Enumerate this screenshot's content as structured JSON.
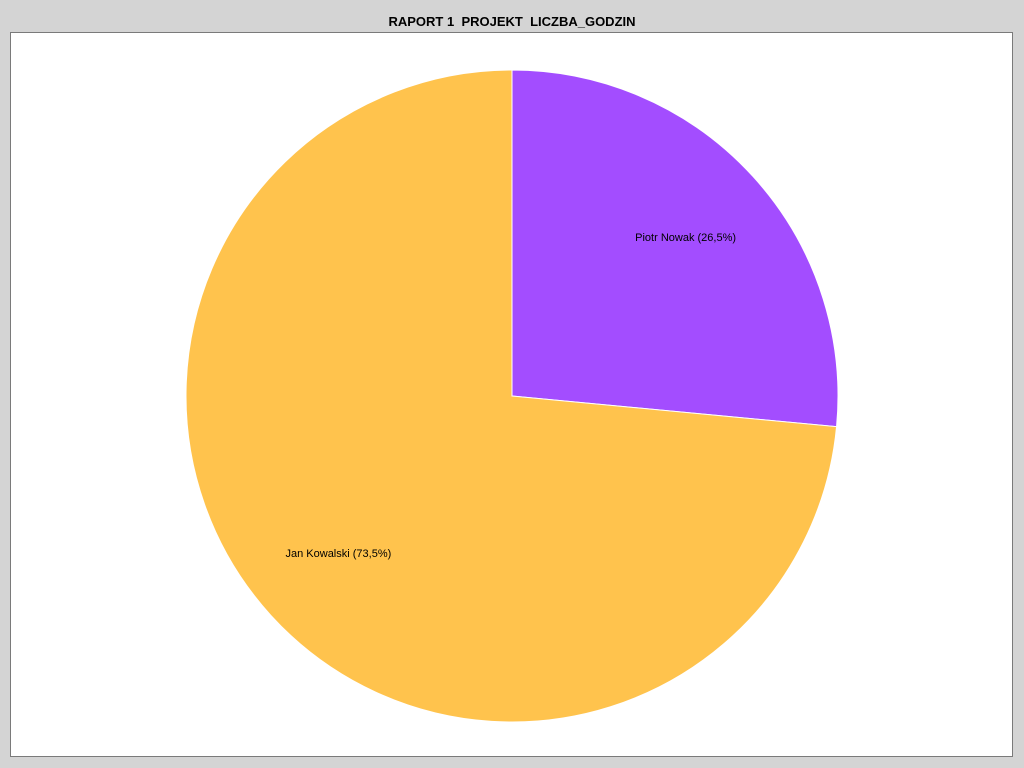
{
  "chart_data": {
    "type": "pie",
    "title": "RAPORT 1  PROJEKT  LICZBA_GODZIN",
    "slices": [
      {
        "name": "Piotr Nowak",
        "percent": 26.5,
        "label": "Piotr Nowak (26,5%)",
        "color": "#a34dff"
      },
      {
        "name": "Jan Kowalski",
        "percent": 73.5,
        "label": "Jan Kowalski (73,5%)",
        "color": "#ffc34d"
      }
    ],
    "legend": "none",
    "start_angle": "12 o'clock",
    "direction": "clockwise"
  },
  "colors": {
    "background": "#d4d4d4",
    "plot_background": "#ffffff",
    "slice_border": "#ffffff"
  }
}
